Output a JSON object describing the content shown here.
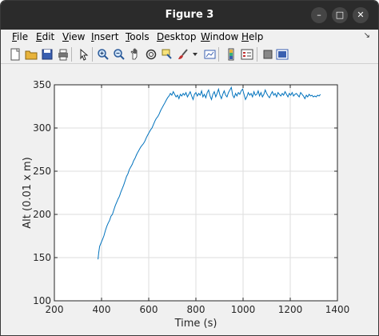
{
  "window": {
    "title": "Figure 3",
    "controls": {
      "minimize": "–",
      "maximize": "□",
      "close": "✕"
    }
  },
  "menubar": {
    "items": [
      {
        "label": "File",
        "u": "F",
        "rest": "ile"
      },
      {
        "label": "Edit",
        "u": "E",
        "rest": "dit"
      },
      {
        "label": "View",
        "u": "V",
        "rest": "iew"
      },
      {
        "label": "Insert",
        "u": "I",
        "rest": "nsert"
      },
      {
        "label": "Tools",
        "u": "T",
        "rest": "ools"
      },
      {
        "label": "Desktop",
        "u": "D",
        "rest": "esktop"
      },
      {
        "label": "Window",
        "u": "W",
        "rest": "indow"
      },
      {
        "label": "Help",
        "u": "H",
        "rest": "elp"
      }
    ],
    "pin": "↘"
  },
  "toolbar": {
    "icons": [
      "new-figure-icon",
      "open-file-icon",
      "save-icon",
      "print-icon",
      "edit-plot-icon",
      "zoom-in-icon",
      "zoom-out-icon",
      "pan-icon",
      "rotate-3d-icon",
      "data-cursor-icon",
      "brush-icon",
      "brush-dropdown-icon",
      "link-plot-icon",
      "insert-colorbar-icon",
      "insert-legend-icon",
      "hide-plot-tools-icon",
      "show-plot-tools-icon"
    ]
  },
  "chart_data": {
    "type": "line",
    "xlabel": "Time (s)",
    "ylabel": "Alt (0.01 x m)",
    "xlim": [
      200,
      1400
    ],
    "ylim": [
      100,
      350
    ],
    "xticks": [
      "200",
      "400",
      "600",
      "800",
      "1000",
      "1200",
      "1400"
    ],
    "yticks": [
      "100",
      "150",
      "200",
      "250",
      "300",
      "350"
    ],
    "grid": true,
    "line_color": "#0072bd",
    "series": [
      {
        "x": [
          385,
          388,
          392,
          398,
          404,
          410,
          416,
          422,
          428,
          434,
          440,
          446,
          452,
          458,
          464,
          470,
          476,
          482,
          488,
          494,
          500,
          506,
          512,
          518,
          524,
          530,
          536,
          542,
          548,
          554,
          560,
          566,
          572,
          578,
          584,
          590,
          596,
          602,
          608,
          614,
          620,
          626,
          632,
          638,
          644,
          650,
          656,
          662,
          668,
          674,
          680,
          686,
          692,
          698,
          704,
          710,
          716,
          722,
          728,
          734,
          740,
          746,
          752,
          758,
          764,
          770,
          776,
          782,
          788,
          794,
          800,
          806,
          812,
          818,
          824,
          830,
          836,
          842,
          848,
          854,
          860,
          866,
          872,
          878,
          884,
          890,
          896,
          902,
          908,
          914,
          920,
          926,
          932,
          938,
          944,
          950,
          956,
          962,
          968,
          974,
          980,
          986,
          992,
          998,
          1004,
          1010,
          1016,
          1022,
          1028,
          1034,
          1040,
          1046,
          1052,
          1058,
          1064,
          1070,
          1076,
          1082,
          1088,
          1094,
          1100,
          1106,
          1112,
          1118,
          1124,
          1130,
          1136,
          1142,
          1148,
          1154,
          1160,
          1166,
          1172,
          1178,
          1184,
          1190,
          1196,
          1202,
          1208,
          1214,
          1220,
          1226,
          1232,
          1238,
          1244,
          1250,
          1256,
          1262,
          1268,
          1274,
          1280,
          1286,
          1292,
          1298,
          1304,
          1310,
          1316,
          1322,
          1328
        ],
        "y": [
          148,
          156,
          163,
          167,
          171,
          175,
          181,
          186,
          190,
          193,
          198,
          200,
          205,
          210,
          214,
          218,
          221,
          226,
          230,
          234,
          239,
          244,
          247,
          252,
          255,
          258,
          262,
          265,
          269,
          272,
          275,
          278,
          280,
          282,
          285,
          289,
          292,
          295,
          298,
          300,
          304,
          308,
          311,
          313,
          316,
          320,
          323,
          326,
          329,
          332,
          335,
          337,
          340,
          338,
          342,
          339,
          336,
          338,
          334,
          339,
          337,
          340,
          338,
          341,
          336,
          339,
          342,
          337,
          333,
          339,
          341,
          337,
          340,
          338,
          343,
          336,
          339,
          335,
          341,
          344,
          337,
          333,
          339,
          342,
          336,
          340,
          345,
          338,
          334,
          339,
          343,
          338,
          336,
          341,
          344,
          347,
          338,
          335,
          340,
          337,
          341,
          339,
          343,
          345,
          339,
          333,
          336,
          341,
          338,
          340,
          336,
          342,
          338,
          339,
          343,
          337,
          341,
          336,
          339,
          344,
          340,
          337,
          335,
          339,
          342,
          338,
          340,
          336,
          341,
          339,
          337,
          340,
          338,
          342,
          339,
          336,
          340,
          338,
          341,
          337,
          339,
          340,
          338,
          336,
          341,
          339,
          337,
          334,
          338,
          336,
          339,
          337,
          338,
          336,
          337,
          336,
          338,
          337,
          339
        ]
      }
    ]
  }
}
